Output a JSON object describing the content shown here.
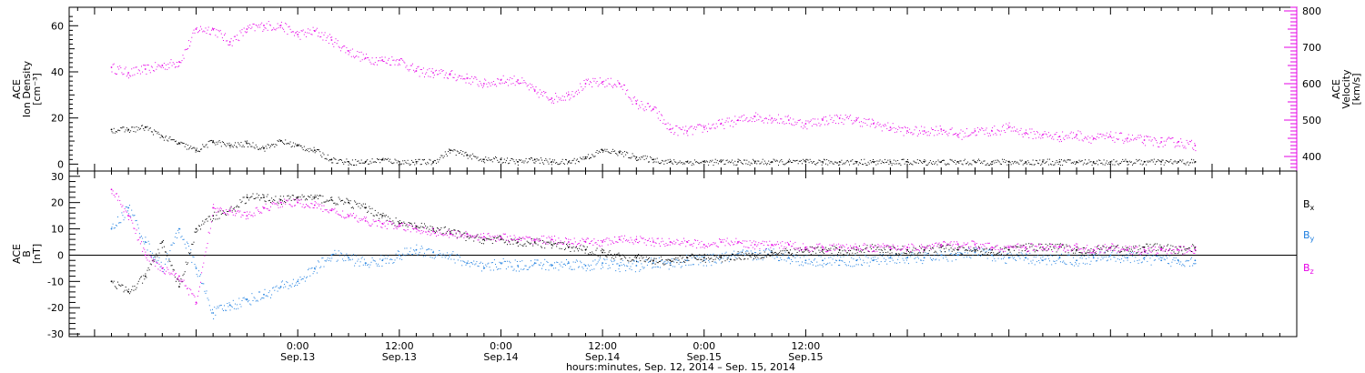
{
  "chart_data": [
    {
      "type": "scatter",
      "panel": "top",
      "ylabel_left_lines": [
        "ACE",
        "Ion Density",
        "[cm⁻³]"
      ],
      "ylabel_right_lines": [
        "ACE",
        "Velocity",
        "[km/s]"
      ],
      "left_axis": {
        "ylim": [
          -3,
          68
        ],
        "ticks": [
          0,
          20,
          40,
          60
        ],
        "color": "#000000"
      },
      "right_axis": {
        "ylim": [
          360,
          810
        ],
        "ticks": [
          400,
          500,
          600,
          700,
          800
        ],
        "color": "#e600e6"
      },
      "series": [
        {
          "name": "Ion Density",
          "axis": "left",
          "color": "#000000",
          "x": [
            -22,
            -20,
            -18,
            -16,
            -14,
            -12,
            -10,
            -8,
            -6,
            -4,
            -2,
            0,
            2,
            4,
            6,
            8,
            10,
            12,
            14,
            16,
            18,
            20,
            22,
            24,
            26,
            28,
            30,
            32,
            34,
            36,
            38,
            40,
            42,
            44,
            46,
            48,
            50,
            52,
            54,
            56,
            58,
            60,
            62,
            64,
            66,
            68,
            70,
            72,
            74,
            76,
            78,
            80,
            82,
            84,
            86,
            88,
            90,
            92,
            94,
            96,
            98,
            100,
            102,
            104,
            106
          ],
          "y": [
            15,
            15,
            16,
            12,
            9,
            6,
            10,
            8,
            9,
            7,
            10,
            8,
            6,
            2,
            1,
            1,
            2,
            1,
            1,
            1,
            6,
            4,
            2,
            2,
            1,
            2,
            1,
            1,
            3,
            6,
            5,
            3,
            2,
            1,
            1,
            1,
            1,
            1,
            1,
            1,
            1,
            1,
            1,
            1,
            1,
            1,
            1,
            1,
            1,
            1,
            1,
            1,
            1,
            1,
            1,
            1,
            1,
            1,
            1,
            1,
            1,
            1,
            1,
            1,
            1
          ]
        },
        {
          "name": "Velocity",
          "axis": "right",
          "color": "#e600e6",
          "x": [
            -22,
            -20,
            -18,
            -16,
            -14,
            -12,
            -10,
            -8,
            -6,
            -4,
            -2,
            0,
            2,
            4,
            6,
            8,
            10,
            12,
            14,
            16,
            18,
            20,
            22,
            24,
            26,
            28,
            30,
            32,
            34,
            36,
            38,
            40,
            42,
            44,
            46,
            48,
            50,
            52,
            54,
            56,
            58,
            60,
            62,
            64,
            66,
            68,
            70,
            72,
            74,
            76,
            78,
            80,
            82,
            84,
            86,
            88,
            90,
            92,
            94,
            96,
            98,
            100,
            102,
            104,
            106
          ],
          "y": [
            645,
            630,
            640,
            650,
            660,
            750,
            750,
            715,
            750,
            760,
            760,
            735,
            745,
            720,
            690,
            670,
            665,
            665,
            635,
            630,
            625,
            615,
            600,
            610,
            610,
            580,
            560,
            570,
            600,
            605,
            600,
            545,
            530,
            475,
            470,
            480,
            490,
            500,
            510,
            505,
            500,
            490,
            500,
            505,
            500,
            490,
            480,
            470,
            470,
            475,
            460,
            470,
            470,
            480,
            465,
            460,
            455,
            460,
            450,
            455,
            450,
            445,
            440,
            440,
            430
          ]
        }
      ]
    },
    {
      "type": "scatter",
      "panel": "bottom",
      "ylabel_lines": [
        "ACE",
        "B",
        "[nT]"
      ],
      "ylim": [
        -31,
        32
      ],
      "ticks": [
        -30,
        -20,
        -10,
        0,
        10,
        20,
        30
      ],
      "zero_line": true,
      "legend": {
        "position": "right",
        "entries": [
          {
            "label": "B",
            "sub": "x",
            "color": "#000000"
          },
          {
            "label": "B",
            "sub": "y",
            "color": "#1e7fe0"
          },
          {
            "label": "B",
            "sub": "z",
            "color": "#e600e6"
          }
        ]
      },
      "series": [
        {
          "name": "Bx",
          "color": "#000000",
          "x": [
            -22,
            -20,
            -18,
            -16,
            -14,
            -12,
            -10,
            -8,
            -6,
            -4,
            -2,
            0,
            2,
            4,
            6,
            8,
            10,
            12,
            14,
            16,
            18,
            20,
            22,
            24,
            26,
            28,
            30,
            32,
            34,
            36,
            38,
            40,
            42,
            44,
            46,
            48,
            50,
            52,
            54,
            56,
            58,
            60,
            62,
            64,
            66,
            68,
            70,
            72,
            74,
            76,
            78,
            80,
            82,
            84,
            86,
            88,
            90,
            92,
            94,
            96,
            98,
            100,
            102,
            104,
            106
          ],
          "y": [
            -10,
            -14,
            -8,
            5,
            -12,
            10,
            15,
            17,
            22,
            22,
            21,
            22,
            22,
            21,
            20,
            18,
            15,
            12,
            11,
            10,
            9,
            7,
            6,
            6,
            5,
            5,
            4,
            3,
            2,
            1,
            0,
            -1,
            -2,
            -2,
            -1,
            -1,
            -1,
            0,
            0,
            1,
            1,
            2,
            2,
            2,
            2,
            3,
            2,
            2,
            2,
            3,
            2,
            2,
            2,
            2,
            3,
            3,
            3,
            2,
            2,
            3,
            2,
            3,
            3,
            2,
            3
          ]
        },
        {
          "name": "By",
          "color": "#1e7fe0",
          "x": [
            -22,
            -20,
            -18,
            -16,
            -14,
            -12,
            -10,
            -8,
            -6,
            -4,
            -2,
            0,
            2,
            4,
            6,
            8,
            10,
            12,
            14,
            16,
            18,
            20,
            22,
            24,
            26,
            28,
            30,
            32,
            34,
            36,
            38,
            40,
            42,
            44,
            46,
            48,
            50,
            52,
            54,
            56,
            58,
            60,
            62,
            64,
            66,
            68,
            70,
            72,
            74,
            76,
            78,
            80,
            82,
            84,
            86,
            88,
            90,
            92,
            94,
            96,
            98,
            100,
            102,
            104,
            106
          ],
          "y": [
            10,
            18,
            5,
            -5,
            10,
            -5,
            -22,
            -19,
            -17,
            -15,
            -12,
            -10,
            -5,
            0,
            -1,
            -3,
            -2,
            0,
            2,
            1,
            0,
            -3,
            -5,
            -3,
            -4,
            -3,
            -4,
            -3,
            -4,
            -3,
            -4,
            -4,
            -3,
            -3,
            -2,
            -2,
            -1,
            0,
            0,
            1,
            -1,
            -2,
            -2,
            -2,
            -2,
            -2,
            -1,
            -1,
            -1,
            0,
            0,
            1,
            0,
            -1,
            -1,
            -2,
            -1,
            -2,
            -1,
            0,
            -1,
            -1,
            -2,
            -2,
            -2
          ]
        },
        {
          "name": "Bz",
          "color": "#e600e6",
          "x": [
            -22,
            -20,
            -18,
            -16,
            -14,
            -12,
            -10,
            -8,
            -6,
            -4,
            -2,
            0,
            2,
            4,
            6,
            8,
            10,
            12,
            14,
            16,
            18,
            20,
            22,
            24,
            26,
            28,
            30,
            32,
            34,
            36,
            38,
            40,
            42,
            44,
            46,
            48,
            50,
            52,
            54,
            56,
            58,
            60,
            62,
            64,
            66,
            68,
            70,
            72,
            74,
            76,
            78,
            80,
            82,
            84,
            86,
            88,
            90,
            92,
            94,
            96,
            98,
            100,
            102,
            104,
            106
          ],
          "y": [
            25,
            15,
            0,
            -5,
            -8,
            -18,
            18,
            17,
            15,
            18,
            20,
            20,
            19,
            17,
            15,
            13,
            12,
            11,
            10,
            9,
            8,
            8,
            7,
            7,
            6,
            6,
            6,
            5,
            5,
            5,
            6,
            6,
            5,
            5,
            5,
            4,
            5,
            5,
            4,
            4,
            4,
            3,
            3,
            3,
            3,
            3,
            3,
            3,
            3,
            4,
            4,
            4,
            3,
            3,
            3,
            3,
            3,
            3,
            2,
            3,
            2,
            2,
            2,
            2,
            2
          ]
        }
      ]
    }
  ],
  "x_axis": {
    "xlim": [
      -27,
      118
    ],
    "ticks": [
      {
        "x": 0,
        "time": "0:00",
        "date": "Sep.13"
      },
      {
        "x": 12,
        "time": "12:00",
        "date": "Sep.13"
      },
      {
        "x": 24,
        "time": "0:00",
        "date": "Sep.14"
      },
      {
        "x": 36,
        "time": "12:00",
        "date": "Sep.14"
      },
      {
        "x": 48,
        "time": "0:00",
        "date": "Sep.15"
      },
      {
        "x": 60,
        "time": "12:00",
        "date": "Sep.15"
      }
    ],
    "label": "hours:minutes, Sep. 12, 2014 – Sep. 15, 2014"
  }
}
